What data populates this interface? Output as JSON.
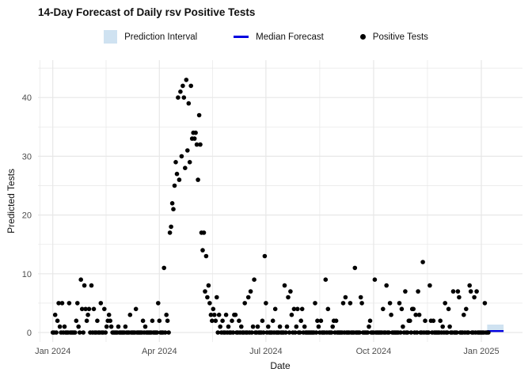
{
  "title": "14-Day Forecast of Daily rsv Positive Tests",
  "legend": {
    "items": [
      {
        "label": "Prediction Interval",
        "type": "box",
        "color": "#cfe2f1"
      },
      {
        "label": "Median Forecast",
        "type": "line",
        "color": "#0000e0"
      },
      {
        "label": "Positive Tests",
        "type": "point",
        "color": "#000000"
      }
    ]
  },
  "chart_data": {
    "type": "scatter",
    "title": "14-Day Forecast of Daily rsv Positive Tests",
    "xlabel": "Date",
    "ylabel": "Predicted Tests",
    "start_date": "2024-01-01",
    "x_ticks": [
      {
        "label": "Jan 2024",
        "day": 0
      },
      {
        "label": "Apr 2024",
        "day": 91
      },
      {
        "label": "Jul 2024",
        "day": 182
      },
      {
        "label": "Oct 2024",
        "day": 274
      },
      {
        "label": "Jan 2025",
        "day": 366
      }
    ],
    "x_minor_days": [
      -11,
      45.5,
      136.5,
      228,
      320
    ],
    "y_ticks": [
      0,
      10,
      20,
      30,
      40
    ],
    "y_minor": [
      5,
      15,
      25,
      35,
      45
    ],
    "ylim": [
      -1.6,
      46.4
    ],
    "grid": true,
    "legend_position": "top",
    "point_color": "#000000",
    "band_color": "#cfe2f1",
    "median_color": "#0000e0",
    "grid_color": "#e7e7e7",
    "tick_label_color": "#4d4d4d",
    "daily_values": [
      0,
      0,
      3,
      0,
      2,
      5,
      1,
      0,
      5,
      0,
      1,
      0,
      0,
      0,
      5,
      0,
      0,
      0,
      0,
      0,
      2,
      5,
      1,
      0,
      9,
      4,
      0,
      8,
      4,
      2,
      3,
      4,
      0,
      8,
      0,
      4,
      0,
      0,
      2,
      0,
      0,
      5,
      0,
      0,
      4,
      0,
      1,
      2,
      3,
      2,
      1,
      0,
      0,
      0,
      0,
      0,
      1,
      0,
      0,
      0,
      0,
      0,
      1,
      0,
      0,
      0,
      3,
      0,
      0,
      0,
      0,
      4,
      0,
      0,
      0,
      0,
      0,
      2,
      0,
      1,
      0,
      0,
      0,
      0,
      0,
      2,
      0,
      0,
      0,
      0,
      5,
      2,
      0,
      0,
      0,
      11,
      0,
      3,
      2,
      0,
      17,
      18,
      22,
      21,
      25,
      29,
      27,
      40,
      26,
      41,
      30,
      42,
      40,
      28,
      43,
      31,
      39,
      29,
      42,
      33,
      34,
      33,
      34,
      32,
      26,
      37,
      32,
      17,
      14,
      17,
      7,
      13,
      6,
      8,
      5,
      3,
      2,
      4,
      3,
      2,
      6,
      0,
      3,
      1,
      0,
      2,
      0,
      0,
      3,
      0,
      1,
      0,
      0,
      2,
      0,
      3,
      3,
      0,
      0,
      2,
      0,
      1,
      0,
      0,
      5,
      0,
      0,
      6,
      0,
      7,
      0,
      1,
      9,
      0,
      0,
      1,
      0,
      0,
      0,
      2,
      0,
      13,
      5,
      0,
      1,
      0,
      0,
      0,
      2,
      0,
      4,
      0,
      0,
      0,
      1,
      0,
      0,
      0,
      8,
      0,
      1,
      6,
      0,
      7,
      3,
      0,
      4,
      0,
      1,
      4,
      0,
      0,
      2,
      4,
      0,
      1,
      0,
      0,
      0,
      0,
      0,
      0,
      0,
      0,
      5,
      0,
      2,
      1,
      0,
      2,
      0,
      0,
      0,
      9,
      0,
      4,
      0,
      0,
      0,
      1,
      2,
      0,
      2,
      0,
      0,
      0,
      0,
      0,
      5,
      0,
      6,
      0,
      0,
      0,
      5,
      0,
      0,
      0,
      11,
      0,
      0,
      0,
      0,
      6,
      5,
      0,
      0,
      0,
      0,
      0,
      1,
      2,
      0,
      0,
      0,
      9,
      0,
      0,
      0,
      0,
      0,
      0,
      4,
      0,
      0,
      8,
      0,
      0,
      5,
      3,
      0,
      0,
      0,
      0,
      0,
      0,
      5,
      0,
      4,
      1,
      0,
      7,
      0,
      0,
      2,
      2,
      0,
      4,
      4,
      0,
      3,
      0,
      7,
      3,
      0,
      0,
      12,
      0,
      2,
      0,
      0,
      0,
      8,
      2,
      0,
      2,
      0,
      0,
      0,
      0,
      0,
      2,
      0,
      1,
      0,
      5,
      0,
      0,
      4,
      1,
      0,
      0,
      7,
      0,
      0,
      0,
      7,
      6,
      0,
      0,
      0,
      3,
      0,
      4,
      0,
      0,
      8,
      7,
      0,
      0,
      6,
      0,
      7,
      0,
      0,
      0,
      0,
      0,
      0,
      5,
      0,
      0,
      0
    ],
    "forecast": {
      "start_day": 371,
      "horizon_days": 14,
      "median": 0.25,
      "lower": 0.2,
      "upper": 1.35
    }
  }
}
